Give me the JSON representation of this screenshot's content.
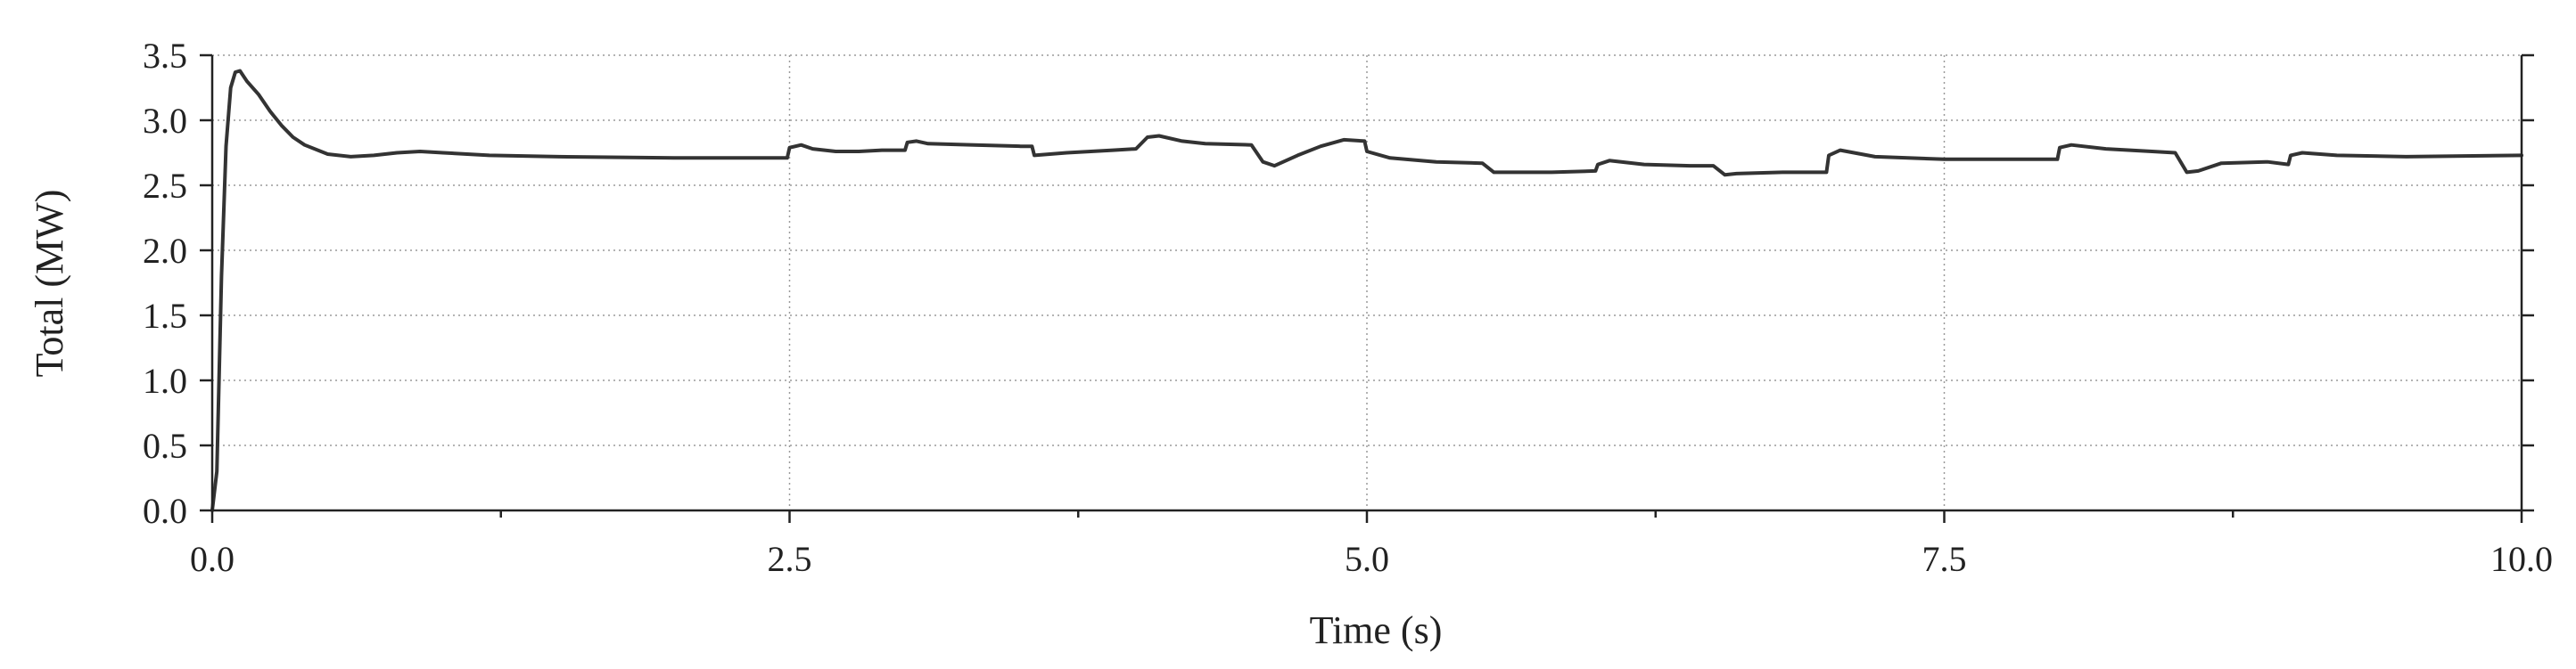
{
  "chart_data": {
    "type": "line",
    "title": "",
    "xlabel": "Time (s)",
    "ylabel": "Total (MW)",
    "xlim": [
      0,
      10
    ],
    "ylim": [
      0,
      3.5
    ],
    "x_ticks": [
      0,
      2.5,
      5,
      7.5,
      10
    ],
    "x_tick_labels": [
      "0.0",
      "2.5",
      "5.0",
      "7.5",
      "10.0"
    ],
    "x_minor_ticks": [
      1.25,
      3.75,
      6.25,
      8.75
    ],
    "y_ticks": [
      0,
      0.5,
      1,
      1.5,
      2,
      2.5,
      3,
      3.5
    ],
    "y_tick_labels": [
      "0.0",
      "0.5",
      "1.0",
      "1.5",
      "2.0",
      "2.5",
      "3.0",
      "3.5"
    ],
    "grid": true,
    "line_color": "#333333",
    "series": [
      {
        "x": [
          0,
          0.02,
          0.04,
          0.06,
          0.08,
          0.1,
          0.12,
          0.15,
          0.2,
          0.25,
          0.3,
          0.35,
          0.4,
          0.5,
          0.6,
          0.7,
          0.8,
          0.9,
          1.0,
          1.2,
          1.5,
          2.0,
          2.49,
          2.5,
          2.55,
          2.6,
          2.7,
          2.8,
          2.9,
          3.0,
          3.01,
          3.05,
          3.1,
          3.3,
          3.5,
          3.55,
          3.56,
          3.7,
          3.9,
          4.0,
          4.05,
          4.1,
          4.2,
          4.3,
          4.5,
          4.55,
          4.6,
          4.7,
          4.8,
          4.9,
          4.99,
          5.0,
          5.1,
          5.3,
          5.5,
          5.55,
          5.6,
          5.8,
          5.99,
          6.0,
          6.05,
          6.2,
          6.4,
          6.5,
          6.55,
          6.6,
          6.8,
          6.99,
          7.0,
          7.05,
          7.2,
          7.5,
          7.8,
          7.99,
          8.0,
          8.05,
          8.2,
          8.4,
          8.5,
          8.55,
          8.6,
          8.7,
          8.9,
          8.99,
          9.0,
          9.05,
          9.2,
          9.5,
          10.0
        ],
        "y": [
          0.0,
          0.3,
          1.8,
          2.8,
          3.25,
          3.37,
          3.38,
          3.3,
          3.2,
          3.07,
          2.96,
          2.87,
          2.81,
          2.74,
          2.72,
          2.73,
          2.75,
          2.76,
          2.75,
          2.73,
          2.72,
          2.71,
          2.71,
          2.79,
          2.81,
          2.78,
          2.76,
          2.76,
          2.77,
          2.77,
          2.83,
          2.84,
          2.82,
          2.81,
          2.8,
          2.8,
          2.73,
          2.75,
          2.77,
          2.78,
          2.87,
          2.88,
          2.84,
          2.82,
          2.81,
          2.68,
          2.65,
          2.73,
          2.8,
          2.85,
          2.84,
          2.76,
          2.71,
          2.68,
          2.67,
          2.6,
          2.6,
          2.6,
          2.61,
          2.66,
          2.69,
          2.66,
          2.65,
          2.65,
          2.58,
          2.59,
          2.6,
          2.6,
          2.73,
          2.77,
          2.72,
          2.7,
          2.7,
          2.7,
          2.79,
          2.81,
          2.78,
          2.76,
          2.75,
          2.6,
          2.61,
          2.67,
          2.68,
          2.66,
          2.73,
          2.75,
          2.73,
          2.72,
          2.73
        ]
      }
    ]
  }
}
